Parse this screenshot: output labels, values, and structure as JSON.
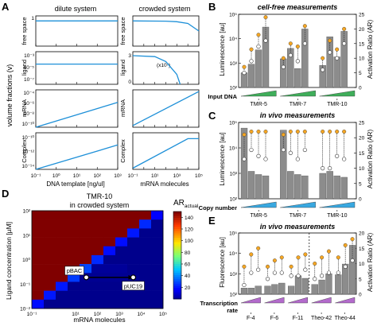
{
  "panel_labels": {
    "a": "A",
    "b": "B",
    "c": "C",
    "d": "D",
    "e": "E"
  },
  "panel_a": {
    "col_titles": [
      "dilute system",
      "crowded system"
    ],
    "y_group_label": "volume fractions (v)",
    "row_labels": [
      "free space",
      "ligand",
      "mRNA",
      "Complex"
    ],
    "ligand_right_unit": "(x10⁷)",
    "xlabel_left": "DNA template [ng/ul]",
    "xlabel_right": "mRNA molecules"
  },
  "panel_b": {
    "title": "cell-free measurements",
    "ylabel_left": "Luminescence [au]",
    "ylabel_right": "Activation Ratio (AR)",
    "input_label": "Input DNA",
    "groups": [
      "TMR-5",
      "TMR-7",
      "TMR-10"
    ]
  },
  "panel_c": {
    "title": "in vivo measurements",
    "ylabel_left": "Luminescence [au]",
    "ylabel_right": "Activation Ratio (AR)",
    "input_label": "Copy number",
    "groups": [
      "TMR-5",
      "TMR-7",
      "TMR-10"
    ]
  },
  "panel_d": {
    "title_line1": "TMR-10",
    "title_line2": "in crowded system",
    "colorbar_title": "AR",
    "colorbar_sub": "actual",
    "ylabel": "Ligand concentration [µM]",
    "xlabel": "mRNA molecules",
    "annot_pbac": "pBAC",
    "annot_puc": "pUC19"
  },
  "panel_e": {
    "title": "in vivo measurements",
    "ylabel_left": "Fluorescence [au]",
    "ylabel_right": "Activation Ratio (AR)",
    "input_label_1": "Transcription",
    "input_label_2": "rate",
    "groups": [
      "F-4",
      "F-6",
      "F-11",
      "Theo-42",
      "Theo-44"
    ]
  },
  "colors": {
    "line": "#1e90d8",
    "bar": "#8c8c8c",
    "orange": "#f5a623",
    "ramp_green": "#3fae5a",
    "ramp_blue": "#39a8e0",
    "ramp_purple": "#b36bcc"
  },
  "chart_data": [
    {
      "type": "line",
      "panel": "A",
      "x_left_log_range": [
        0.1,
        1000
      ],
      "x_right_log_range": [
        0.1,
        100000
      ],
      "series": [
        {
          "row": "free space",
          "system": "dilute",
          "x": [
            0.1,
            1000
          ],
          "y": [
            1.0,
            1.0
          ]
        },
        {
          "row": "free space",
          "system": "crowded",
          "x": [
            0.1,
            100,
            1000,
            10000,
            100000
          ],
          "y": [
            1.0,
            0.99,
            0.97,
            0.9,
            0.6
          ]
        },
        {
          "row": "ligand",
          "system": "dilute",
          "x": [
            0.1,
            1000
          ],
          "y": [
            3e-05,
            3e-05
          ]
        },
        {
          "row": "ligand",
          "system": "crowded",
          "x": [
            0.1,
            10,
            100,
            1000,
            2000
          ],
          "y": [
            2.9,
            2.8,
            2.3,
            1.0,
            0.0
          ]
        },
        {
          "row": "mRNA",
          "system": "dilute",
          "x": [
            0.1,
            1000
          ],
          "y": [
            1e-10,
            1e-06
          ]
        },
        {
          "row": "mRNA",
          "system": "crowded",
          "x": [
            0.1,
            100000
          ],
          "y": [
            1e-10,
            0.0001
          ]
        },
        {
          "row": "Complex",
          "system": "dilute",
          "x": [
            0.1,
            1000
          ],
          "y": [
            1e-15,
            1e-11
          ]
        },
        {
          "row": "Complex",
          "system": "crowded",
          "x": [
            0.1,
            10000,
            100000
          ],
          "y": [
            1e-15,
            1e-10,
            1e-10
          ]
        }
      ],
      "tick_labels": {
        "free_space_y": [
          "1",
          "0"
        ],
        "ligand_y_left": [
          "10⁻³",
          "10⁻⁵",
          "10⁻⁷"
        ],
        "ligand_y_right": [
          "3",
          "0"
        ],
        "mRNA_y": [
          "10⁻⁴",
          "10⁻⁶",
          "10⁻⁸",
          "10⁻¹⁰"
        ],
        "complex_y": [
          "10⁻¹⁰",
          "10⁻¹²",
          "10⁻¹⁴"
        ],
        "x_left": [
          "10⁻¹",
          "10⁰",
          "10¹",
          "10²",
          "10³"
        ],
        "x_right": [
          "10⁻¹",
          "10¹",
          "10³",
          "10⁵"
        ]
      }
    },
    {
      "type": "bar",
      "panel": "B",
      "ylim_left_log": [
        100,
        100000
      ],
      "ylim_right": [
        0,
        25
      ],
      "left_ticks": [
        "10²",
        "10³",
        "10⁴",
        "10⁵"
      ],
      "right_ticks": [
        "0",
        "5",
        "10",
        "15",
        "20",
        "25"
      ],
      "groups": [
        "TMR-5",
        "TMR-7",
        "TMR-10"
      ],
      "bars_lum": [
        [
          400,
          900,
          3500,
          30000
        ],
        [
          1500,
          4000,
          600,
          25000
        ],
        [
          800,
          12000,
          1800,
          20000
        ]
      ],
      "ar_open": [
        [
          5,
          9,
          14,
          16
        ],
        [
          7,
          11,
          9,
          15
        ],
        [
          6,
          12,
          10,
          15
        ]
      ],
      "ar_orange": [
        [
          7,
          13,
          18,
          24
        ],
        [
          10,
          15,
          14,
          21
        ],
        [
          10,
          16,
          13,
          20
        ]
      ]
    },
    {
      "type": "bar",
      "panel": "C",
      "ylim_left_log": [
        100,
        100000
      ],
      "ylim_right": [
        0,
        25
      ],
      "left_ticks": [
        "10²",
        "10³",
        "10⁴",
        "10⁵"
      ],
      "right_ticks": [
        "0",
        "5",
        "10",
        "15",
        "20",
        "25"
      ],
      "groups": [
        "TMR-5",
        "TMR-7",
        "TMR-10"
      ],
      "bars_lum": [
        [
          60000,
          1200,
          900,
          800
        ],
        [
          50000,
          1200,
          900,
          800
        ],
        [
          1000,
          1200,
          800,
          700
        ]
      ],
      "ar_open": [
        [
          13,
          16,
          14,
          13
        ],
        [
          16,
          15,
          13,
          16
        ],
        [
          10,
          10,
          14,
          13
        ]
      ],
      "ar_orange": [
        [
          21,
          22,
          22,
          22
        ],
        [
          21,
          22,
          22,
          22
        ],
        [
          22,
          22,
          22,
          22
        ]
      ]
    },
    {
      "type": "heatmap",
      "panel": "D",
      "x_log_range": [
        0.1,
        100000
      ],
      "y_log_range": [
        0.01,
        100
      ],
      "x_ticks": [
        "10⁻¹",
        "10¹",
        "10²",
        "10³",
        "10⁴",
        "10⁵"
      ],
      "y_ticks": [
        "10⁻²",
        "10⁻¹",
        "10⁰",
        "10¹",
        "10²"
      ],
      "colorbar_ticks": [
        20,
        40,
        60,
        80,
        100,
        120,
        140
      ],
      "colorbar_range": [
        0,
        150
      ],
      "rows_top_to_bottom": [
        [
          150,
          150,
          150,
          150,
          150,
          150,
          150,
          150,
          150,
          150,
          18
        ],
        [
          150,
          150,
          150,
          150,
          150,
          150,
          150,
          150,
          150,
          25,
          0
        ],
        [
          150,
          150,
          150,
          150,
          150,
          150,
          150,
          150,
          22,
          0,
          0
        ],
        [
          150,
          150,
          150,
          150,
          150,
          150,
          150,
          20,
          0,
          0,
          0
        ],
        [
          150,
          150,
          150,
          150,
          150,
          150,
          20,
          0,
          0,
          0,
          0
        ],
        [
          150,
          150,
          150,
          150,
          150,
          25,
          0,
          0,
          0,
          0,
          0
        ],
        [
          150,
          150,
          150,
          150,
          30,
          2,
          2,
          2,
          0,
          0,
          0
        ],
        [
          150,
          150,
          150,
          28,
          1,
          1,
          1,
          1,
          1,
          0,
          0
        ],
        [
          150,
          150,
          22,
          0,
          0,
          0,
          0,
          0,
          0,
          0,
          0
        ],
        [
          150,
          22,
          0,
          0,
          0,
          0,
          0,
          0,
          0,
          0,
          0
        ],
        [
          20,
          0,
          0,
          0,
          0,
          0,
          0,
          0,
          0,
          0,
          0
        ]
      ]
    },
    {
      "type": "bar",
      "panel": "E",
      "ylim_left_log": [
        100,
        100000
      ],
      "ylim_right": [
        0,
        20
      ],
      "left_ticks": [
        "10²",
        "10³",
        "10⁴",
        "10⁵"
      ],
      "right_ticks": [
        "0",
        "5",
        "10",
        "15",
        "20"
      ],
      "groups": [
        "F-4",
        "F-6",
        "F-11",
        "Theo-42",
        "Theo-44"
      ],
      "bars_fluor": [
        [
          200,
          200,
          250
        ],
        [
          250,
          300,
          350
        ],
        [
          250,
          800,
          600
        ],
        [
          300,
          500,
          1000
        ],
        [
          900,
          3000,
          25000
        ]
      ],
      "ar_open": [
        [
          3,
          7,
          8
        ],
        [
          5,
          7,
          7
        ],
        [
          6,
          6,
          8
        ],
        [
          5,
          6,
          7
        ],
        [
          7,
          9,
          11
        ]
      ],
      "ar_orange": [
        [
          9,
          13,
          15
        ],
        [
          9,
          11,
          12
        ],
        [
          9,
          12,
          13
        ],
        [
          10,
          12,
          14
        ],
        [
          12,
          16,
          18
        ]
      ]
    }
  ]
}
